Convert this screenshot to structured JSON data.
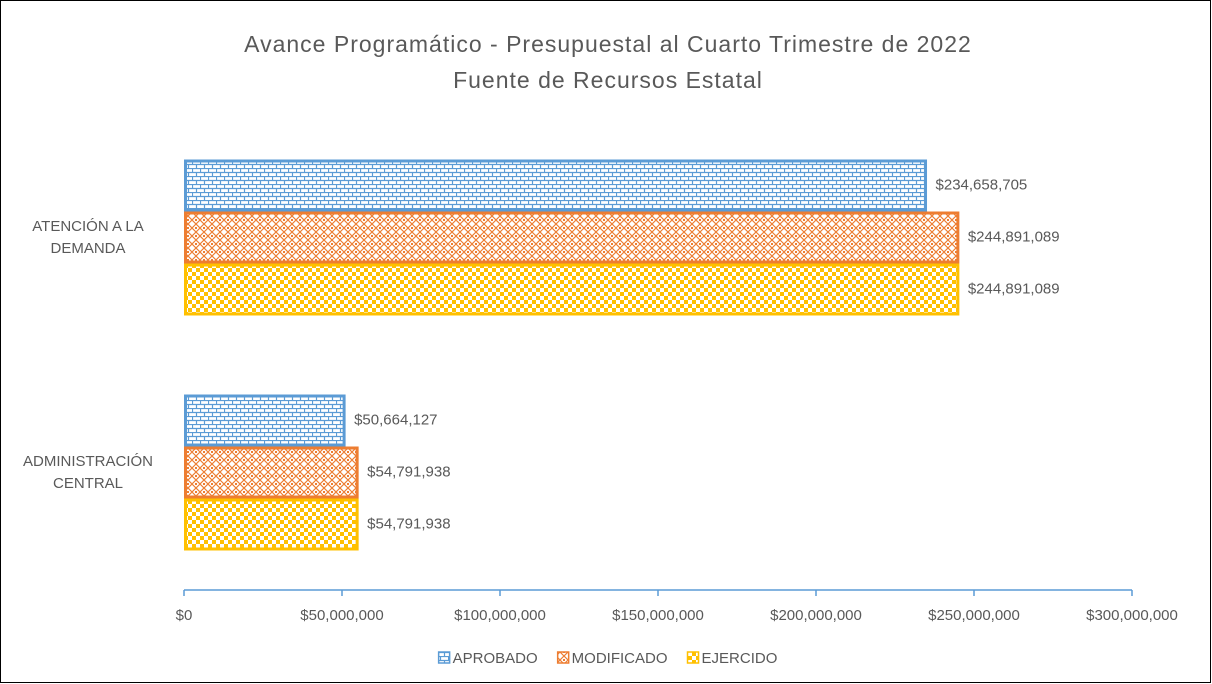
{
  "chart_data": {
    "type": "hbar",
    "title": "Avance Programático - Presupuestal al Cuarto Trimestre de 2022",
    "subtitle": "Fuente de Recursos Estatal",
    "categories": [
      "ATENCIÓN A LA DEMANDA",
      "ADMINISTRACIÓN CENTRAL"
    ],
    "series": [
      {
        "name": "APROBADO",
        "color": "#5b9bd5",
        "pattern": "brick",
        "values": [
          234658705,
          50664127
        ],
        "value_labels": [
          "$234,658,705",
          "$50,664,127"
        ]
      },
      {
        "name": "MODIFICADO",
        "color": "#ed7d31",
        "pattern": "diamond",
        "values": [
          244891089,
          54791938
        ],
        "value_labels": [
          "$244,891,089",
          "$54,791,938"
        ]
      },
      {
        "name": "EJERCIDO",
        "color": "#ffc000",
        "pattern": "checker",
        "values": [
          244891089,
          54791938
        ],
        "value_labels": [
          "$244,891,089",
          "$54,791,938"
        ]
      }
    ],
    "xlim": [
      0,
      300000000
    ],
    "xticks": [
      {
        "value": 0,
        "label": "$0"
      },
      {
        "value": 50000000,
        "label": "$50,000,000"
      },
      {
        "value": 100000000,
        "label": "$100,000,000"
      },
      {
        "value": 150000000,
        "label": "$150,000,000"
      },
      {
        "value": 200000000,
        "label": "$200,000,000"
      },
      {
        "value": 250000000,
        "label": "$250,000,000"
      },
      {
        "value": 300000000,
        "label": "$300,000,000"
      }
    ],
    "axis_color": "#5b9bd5",
    "legend": "bottom"
  }
}
